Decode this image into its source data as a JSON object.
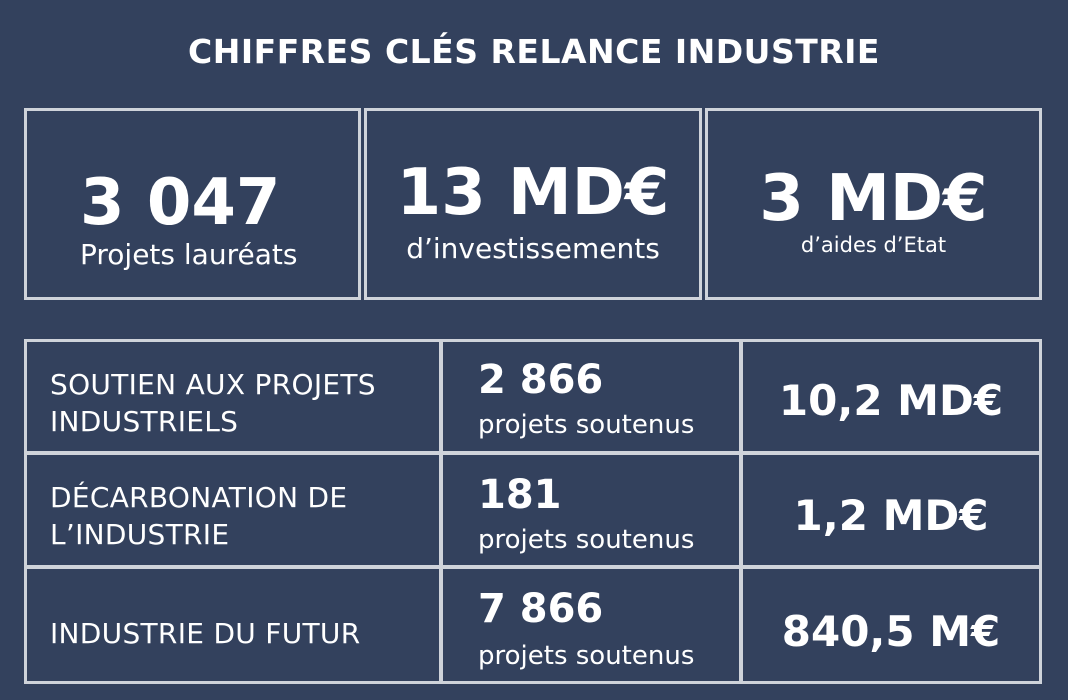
{
  "title": "CHIFFRES CLÉS RELANCE INDUSTRIE",
  "kpis": [
    {
      "value": "3 047",
      "label": "Projets lauréats"
    },
    {
      "value": "13 MD€",
      "label": "d’investissements"
    },
    {
      "value": "3 MD€",
      "label": "d’aides d’Etat"
    }
  ],
  "rows": [
    {
      "category": "SOUTIEN AUX PROJETS\nINDUSTRIELS",
      "projects": "2 866",
      "projects_label": "projets soutenus",
      "amount": "10,2 MD€"
    },
    {
      "category": "DÉCARBONATION DE\nL’INDUSTRIE",
      "projects": "181",
      "projects_label": "projets soutenus",
      "amount": "1,2 MD€"
    },
    {
      "category": "INDUSTRIE DU FUTUR",
      "projects": "7 866",
      "projects_label": "projets soutenus",
      "amount": "840,5 M€"
    }
  ],
  "colors": {
    "background": "#33415d",
    "border": "#cfd3da",
    "text": "#ffffff"
  }
}
